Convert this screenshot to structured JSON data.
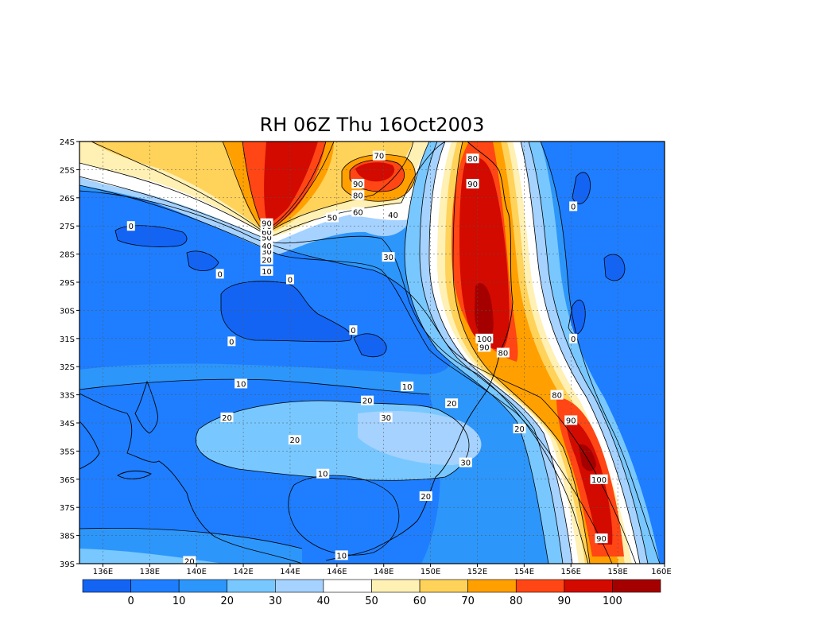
{
  "title": "RH 06Z Thu 16Oct2003",
  "map": {
    "lon_ticks": [
      "136E",
      "138E",
      "140E",
      "142E",
      "144E",
      "146E",
      "148E",
      "150E",
      "152E",
      "154E",
      "156E",
      "158E",
      "160E"
    ],
    "lat_ticks": [
      "24S",
      "25S",
      "26S",
      "27S",
      "28S",
      "29S",
      "30S",
      "31S",
      "32S",
      "33S",
      "34S",
      "35S",
      "36S",
      "37S",
      "38S",
      "39S"
    ],
    "lon_range": [
      135,
      160
    ],
    "lat_range": [
      -39,
      -24
    ],
    "grid": "dashed",
    "contour_labels": [
      {
        "text": "0",
        "lon": 137.2,
        "lat": -27.0
      },
      {
        "text": "0",
        "lon": 141.0,
        "lat": -28.7
      },
      {
        "text": "0",
        "lon": 144.0,
        "lat": -28.9
      },
      {
        "text": "0",
        "lon": 141.5,
        "lat": -31.1
      },
      {
        "text": "0",
        "lon": 146.7,
        "lat": -30.7
      },
      {
        "text": "0",
        "lon": 156.1,
        "lat": -26.3
      },
      {
        "text": "0",
        "lon": 156.1,
        "lat": -31.0
      },
      {
        "text": "10",
        "lon": 143.0,
        "lat": -28.6
      },
      {
        "text": "20",
        "lon": 143.0,
        "lat": -28.2
      },
      {
        "text": "30",
        "lon": 143.0,
        "lat": -27.9
      },
      {
        "text": "40",
        "lon": 143.0,
        "lat": -27.7
      },
      {
        "text": "50",
        "lon": 143.0,
        "lat": -27.4
      },
      {
        "text": "60",
        "lon": 143.0,
        "lat": -27.2
      },
      {
        "text": "70",
        "lon": 143.0,
        "lat": -27.0
      },
      {
        "text": "90",
        "lon": 143.0,
        "lat": -26.9
      },
      {
        "text": "70",
        "lon": 147.8,
        "lat": -24.5
      },
      {
        "text": "90",
        "lon": 146.9,
        "lat": -25.5
      },
      {
        "text": "80",
        "lon": 146.9,
        "lat": -25.9
      },
      {
        "text": "60",
        "lon": 146.9,
        "lat": -26.5
      },
      {
        "text": "50",
        "lon": 145.8,
        "lat": -26.7
      },
      {
        "text": "40",
        "lon": 148.4,
        "lat": -26.6
      },
      {
        "text": "30",
        "lon": 148.2,
        "lat": -28.1
      },
      {
        "text": "80",
        "lon": 151.8,
        "lat": -24.6
      },
      {
        "text": "90",
        "lon": 151.8,
        "lat": -25.5
      },
      {
        "text": "100",
        "lon": 152.3,
        "lat": -31.0
      },
      {
        "text": "90",
        "lon": 152.3,
        "lat": -31.3
      },
      {
        "text": "80",
        "lon": 153.1,
        "lat": -31.5
      },
      {
        "text": "10",
        "lon": 141.9,
        "lat": -32.6
      },
      {
        "text": "10",
        "lon": 149.0,
        "lat": -32.7
      },
      {
        "text": "20",
        "lon": 147.3,
        "lat": -33.2
      },
      {
        "text": "20",
        "lon": 150.9,
        "lat": -33.3
      },
      {
        "text": "20",
        "lon": 141.3,
        "lat": -33.8
      },
      {
        "text": "30",
        "lon": 148.1,
        "lat": -33.8
      },
      {
        "text": "20",
        "lon": 153.8,
        "lat": -34.2
      },
      {
        "text": "20",
        "lon": 144.2,
        "lat": -34.6
      },
      {
        "text": "80",
        "lon": 155.4,
        "lat": -33.0
      },
      {
        "text": "90",
        "lon": 156.0,
        "lat": -33.9
      },
      {
        "text": "30",
        "lon": 151.5,
        "lat": -35.4
      },
      {
        "text": "100",
        "lon": 157.2,
        "lat": -36.0
      },
      {
        "text": "10",
        "lon": 145.4,
        "lat": -35.8
      },
      {
        "text": "20",
        "lon": 149.8,
        "lat": -36.6
      },
      {
        "text": "90",
        "lon": 157.3,
        "lat": -38.1
      },
      {
        "text": "10",
        "lon": 146.2,
        "lat": -38.7
      },
      {
        "text": "20",
        "lon": 139.7,
        "lat": -38.9
      }
    ]
  },
  "colorbar": {
    "colors": [
      "#1464f4",
      "#1e7eff",
      "#2d96fa",
      "#78c8ff",
      "#a5d2ff",
      "#ffffff",
      "#fff0b4",
      "#ffd25a",
      "#ffa000",
      "#ff4614",
      "#d20a00",
      "#a50000"
    ],
    "labels": [
      "0",
      "10",
      "20",
      "30",
      "40",
      "50",
      "60",
      "70",
      "80",
      "90",
      "100"
    ]
  }
}
